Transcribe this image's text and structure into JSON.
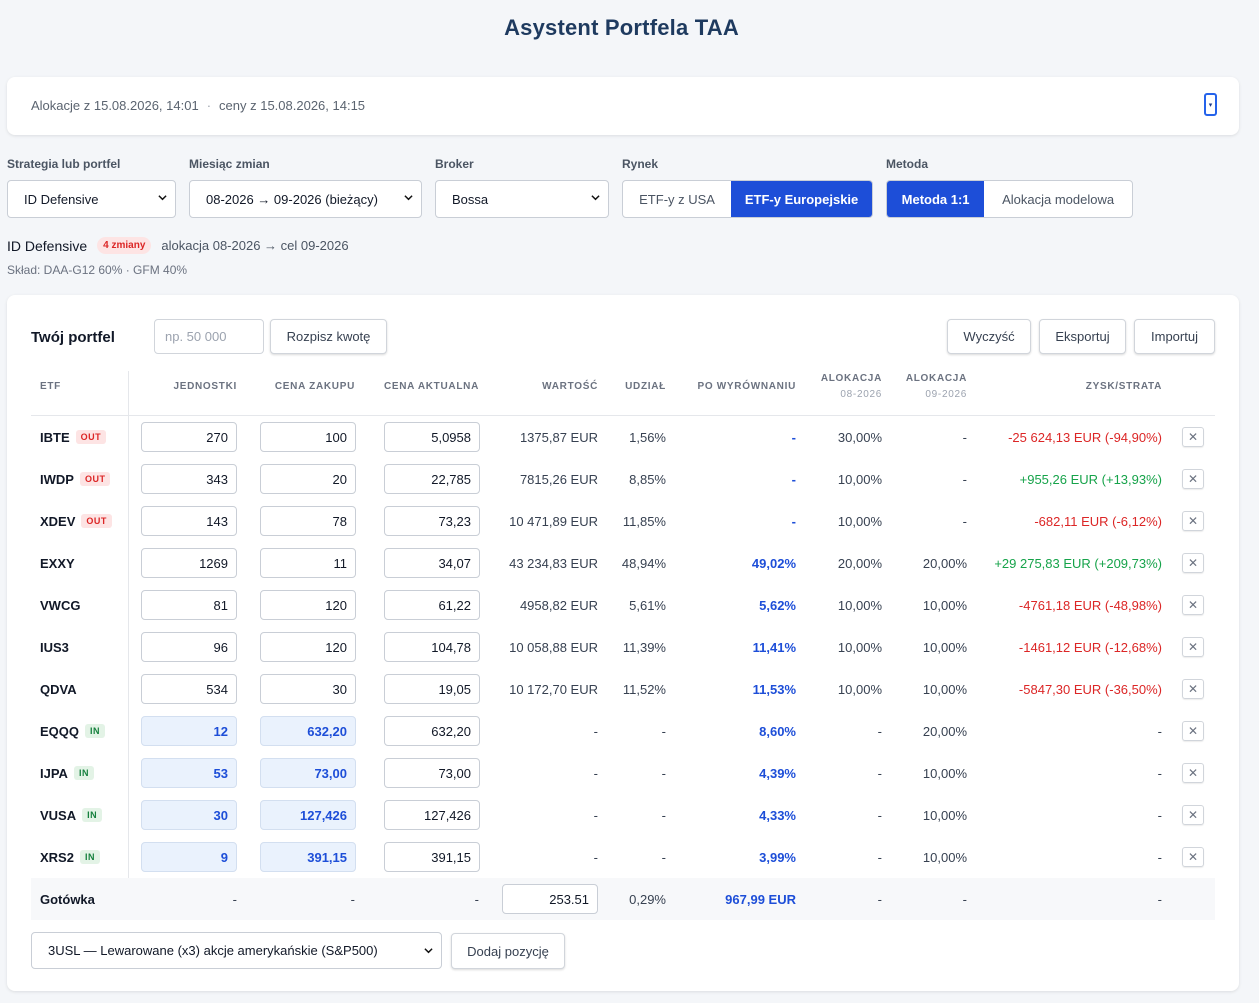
{
  "app": {
    "title": "Asystent Portfela TAA"
  },
  "info": {
    "alloc": "Alokacje z 15.08.2026, 14:01",
    "sep": "·",
    "prices": "ceny z 15.08.2026, 14:15",
    "expand_icon": "▾"
  },
  "controls": {
    "strategy_label": "Strategia lub portfel",
    "strategy_value": "ID Defensive",
    "month_label": "Miesiąc zmian",
    "month_value": "08-2026 → 09-2026 (bieżący)",
    "broker_label": "Broker",
    "broker_value": "Bossa",
    "market_label": "Rynek",
    "market_options": [
      "ETF-y z USA",
      "ETF-y Europejskie"
    ],
    "market_selected": "ETF-y Europejskie",
    "method_label": "Metoda",
    "method_options": [
      "Metoda 1:1",
      "Alokacja modelowa"
    ],
    "method_selected": "Metoda 1:1"
  },
  "strategy": {
    "name": "ID Defensive",
    "changes_badge": "4 zmiany",
    "meta": "alokacja 08-2026 → cel 09-2026",
    "composition": "Skład: DAA-G12 60% · GFM 40%"
  },
  "portfolio": {
    "title": "Twój portfel",
    "amount_placeholder": "np. 50 000",
    "split_button": "Rozpisz kwotę",
    "clear_button": "Wyczyść",
    "export_button": "Eksportuj",
    "import_button": "Importuj",
    "columns": {
      "etf": "ETF",
      "units": "JEDNOSTKI",
      "buy_price": "CENA ZAKUPU",
      "current_price": "CENA AKTUALNA",
      "value": "WARTOŚĆ",
      "share": "UDZIAŁ",
      "rebalanced": "PO WYRÓWNANIU",
      "alloc_a": "ALOKACJA",
      "alloc_a_sub": "08-2026",
      "alloc_b": "ALOKACJA",
      "alloc_b_sub": "09-2026",
      "pnl": "ZYSK/STRATA"
    },
    "rows": [
      {
        "ticker": "IBTE",
        "tag": "OUT",
        "units": "270",
        "buy": "100",
        "price": "5,0958",
        "value": "1375,87 EUR",
        "share": "1,56%",
        "after": "-",
        "alloc_a": "30,00%",
        "alloc_b": "-",
        "pnl": "-25 624,13 EUR (-94,90%)",
        "pnl_sign": "neg",
        "is_new": false
      },
      {
        "ticker": "IWDP",
        "tag": "OUT",
        "units": "343",
        "buy": "20",
        "price": "22,785",
        "value": "7815,26 EUR",
        "share": "8,85%",
        "after": "-",
        "alloc_a": "10,00%",
        "alloc_b": "-",
        "pnl": "+955,26 EUR (+13,93%)",
        "pnl_sign": "pos",
        "is_new": false
      },
      {
        "ticker": "XDEV",
        "tag": "OUT",
        "units": "143",
        "buy": "78",
        "price": "73,23",
        "value": "10 471,89 EUR",
        "share": "11,85%",
        "after": "-",
        "alloc_a": "10,00%",
        "alloc_b": "-",
        "pnl": "-682,11 EUR (-6,12%)",
        "pnl_sign": "neg",
        "is_new": false
      },
      {
        "ticker": "EXXY",
        "tag": "",
        "units": "1269",
        "buy": "11",
        "price": "34,07",
        "value": "43 234,83 EUR",
        "share": "48,94%",
        "after": "49,02%",
        "alloc_a": "20,00%",
        "alloc_b": "20,00%",
        "pnl": "+29 275,83 EUR (+209,73%)",
        "pnl_sign": "pos",
        "is_new": false
      },
      {
        "ticker": "VWCG",
        "tag": "",
        "units": "81",
        "buy": "120",
        "price": "61,22",
        "value": "4958,82 EUR",
        "share": "5,61%",
        "after": "5,62%",
        "alloc_a": "10,00%",
        "alloc_b": "10,00%",
        "pnl": "-4761,18 EUR (-48,98%)",
        "pnl_sign": "neg",
        "is_new": false
      },
      {
        "ticker": "IUS3",
        "tag": "",
        "units": "96",
        "buy": "120",
        "price": "104,78",
        "value": "10 058,88 EUR",
        "share": "11,39%",
        "after": "11,41%",
        "alloc_a": "10,00%",
        "alloc_b": "10,00%",
        "pnl": "-1461,12 EUR (-12,68%)",
        "pnl_sign": "neg",
        "is_new": false
      },
      {
        "ticker": "QDVA",
        "tag": "",
        "units": "534",
        "buy": "30",
        "price": "19,05",
        "value": "10 172,70 EUR",
        "share": "11,52%",
        "after": "11,53%",
        "alloc_a": "10,00%",
        "alloc_b": "10,00%",
        "pnl": "-5847,30 EUR (-36,50%)",
        "pnl_sign": "neg",
        "is_new": false
      },
      {
        "ticker": "EQQQ",
        "tag": "IN",
        "units": "12",
        "buy": "632,20",
        "price": "632,20",
        "value": "-",
        "share": "-",
        "after": "8,60%",
        "alloc_a": "-",
        "alloc_b": "20,00%",
        "pnl": "-",
        "pnl_sign": "none",
        "is_new": true
      },
      {
        "ticker": "IJPA",
        "tag": "IN",
        "units": "53",
        "buy": "73,00",
        "price": "73,00",
        "value": "-",
        "share": "-",
        "after": "4,39%",
        "alloc_a": "-",
        "alloc_b": "10,00%",
        "pnl": "-",
        "pnl_sign": "none",
        "is_new": true
      },
      {
        "ticker": "VUSA",
        "tag": "IN",
        "units": "30",
        "buy": "127,426",
        "price": "127,426",
        "value": "-",
        "share": "-",
        "after": "4,33%",
        "alloc_a": "-",
        "alloc_b": "10,00%",
        "pnl": "-",
        "pnl_sign": "none",
        "is_new": true
      },
      {
        "ticker": "XRS2",
        "tag": "IN",
        "units": "9",
        "buy": "391,15",
        "price": "391,15",
        "value": "-",
        "share": "-",
        "after": "3,99%",
        "alloc_a": "-",
        "alloc_b": "10,00%",
        "pnl": "-",
        "pnl_sign": "none",
        "is_new": true
      }
    ],
    "cash": {
      "label": "Gotówka",
      "units": "-",
      "buy": "-",
      "price": "-",
      "value": "253.51",
      "share": "0,29%",
      "after": "967,99 EUR",
      "alloc_a": "-",
      "alloc_b": "-",
      "pnl": "-"
    },
    "delete_icon": "✕",
    "add_select_value": "3USL — Lewarowane (x3) akcje amerykańskie (S&P500)",
    "add_button": "Dodaj pozycję"
  },
  "colors": {
    "accent": "#1d4ed8",
    "title": "#1e3a5f",
    "negative": "#dc2626",
    "positive": "#16a34a"
  }
}
